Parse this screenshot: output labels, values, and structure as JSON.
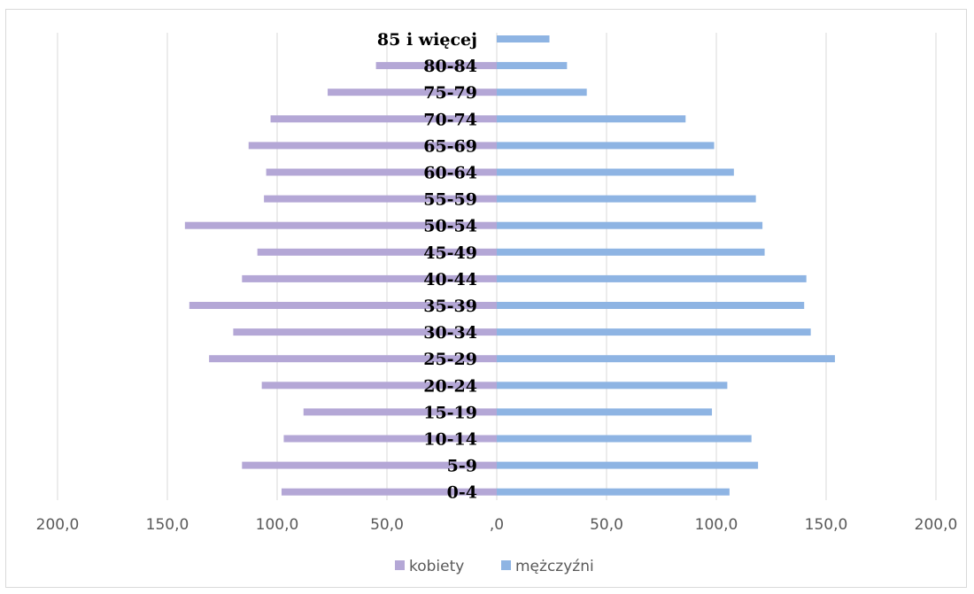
{
  "chart_data": {
    "type": "bar",
    "orientation": "horizontal",
    "categories": [
      "0-4",
      "5-9",
      "10-14",
      "15-19",
      "20-24",
      "25-29",
      "30-34",
      "35-39",
      "40-44",
      "45-49",
      "50-54",
      "55-59",
      "60-64",
      "65-69",
      "70-74",
      "75-79",
      "80-84",
      "85 i więcej"
    ],
    "series": [
      {
        "name": "kobiety",
        "color": "#b4a7d6",
        "values": [
          98,
          116,
          97,
          88,
          107,
          131,
          120,
          140,
          116,
          109,
          142,
          106,
          105,
          113,
          103,
          77,
          55,
          0
        ]
      },
      {
        "name": "mężczyźni",
        "color": "#8eb4e3",
        "values": [
          106,
          119,
          116,
          98,
          105,
          154,
          143,
          140,
          141,
          122,
          121,
          118,
          108,
          99,
          86,
          41,
          32,
          24
        ]
      }
    ],
    "xlim": [
      -200,
      200
    ],
    "x_ticks": [
      -200,
      -150,
      -100,
      -50,
      0,
      50,
      100,
      150,
      200
    ],
    "x_tick_labels": [
      "200,0",
      "150,0",
      "100,0",
      "50,0",
      ",0",
      "50,0",
      "100,0",
      "150,0",
      "200,0"
    ],
    "grid": "vertical",
    "legend_position": "bottom",
    "title": "",
    "xlabel": "",
    "ylabel": ""
  }
}
